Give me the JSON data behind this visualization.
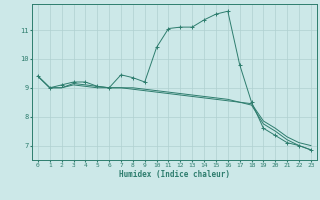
{
  "title": "",
  "xlabel": "Humidex (Indice chaleur)",
  "ylabel": "",
  "bg_color": "#cce8e8",
  "line_color": "#2e7d6e",
  "grid_color": "#b0d0d0",
  "xlim": [
    -0.5,
    23.5
  ],
  "ylim": [
    6.5,
    11.9
  ],
  "xticks": [
    0,
    1,
    2,
    3,
    4,
    5,
    6,
    7,
    8,
    9,
    10,
    11,
    12,
    13,
    14,
    15,
    16,
    17,
    18,
    19,
    20,
    21,
    22,
    23
  ],
  "yticks": [
    7,
    8,
    9,
    10,
    11
  ],
  "series1_x": [
    0,
    1,
    2,
    3,
    4,
    5,
    6,
    7,
    8,
    9,
    10,
    11,
    12,
    13,
    14,
    15,
    16,
    17,
    18,
    19,
    20,
    21,
    22,
    23
  ],
  "series1_y": [
    9.4,
    9.0,
    9.1,
    9.2,
    9.2,
    9.05,
    9.0,
    9.45,
    9.35,
    9.2,
    10.4,
    11.05,
    11.1,
    11.1,
    11.35,
    11.55,
    11.65,
    9.8,
    8.5,
    7.6,
    7.35,
    7.1,
    7.0,
    6.85
  ],
  "series2_x": [
    0,
    1,
    2,
    3,
    4,
    5,
    6,
    7,
    8,
    9,
    10,
    11,
    12,
    13,
    14,
    15,
    16,
    17,
    18,
    19,
    20,
    21,
    22,
    23
  ],
  "series2_y": [
    9.4,
    9.0,
    9.0,
    9.15,
    9.1,
    9.05,
    9.0,
    9.0,
    9.0,
    8.95,
    8.9,
    8.85,
    8.8,
    8.75,
    8.7,
    8.65,
    8.6,
    8.5,
    8.45,
    7.85,
    7.6,
    7.3,
    7.1,
    7.0
  ],
  "series3_x": [
    0,
    1,
    2,
    3,
    4,
    5,
    6,
    7,
    8,
    9,
    10,
    11,
    12,
    13,
    14,
    15,
    16,
    17,
    18,
    19,
    20,
    21,
    22,
    23
  ],
  "series3_y": [
    9.4,
    9.0,
    9.0,
    9.1,
    9.05,
    9.0,
    9.0,
    9.0,
    8.95,
    8.9,
    8.85,
    8.8,
    8.75,
    8.7,
    8.65,
    8.6,
    8.55,
    8.5,
    8.4,
    7.75,
    7.5,
    7.2,
    7.0,
    6.85
  ]
}
